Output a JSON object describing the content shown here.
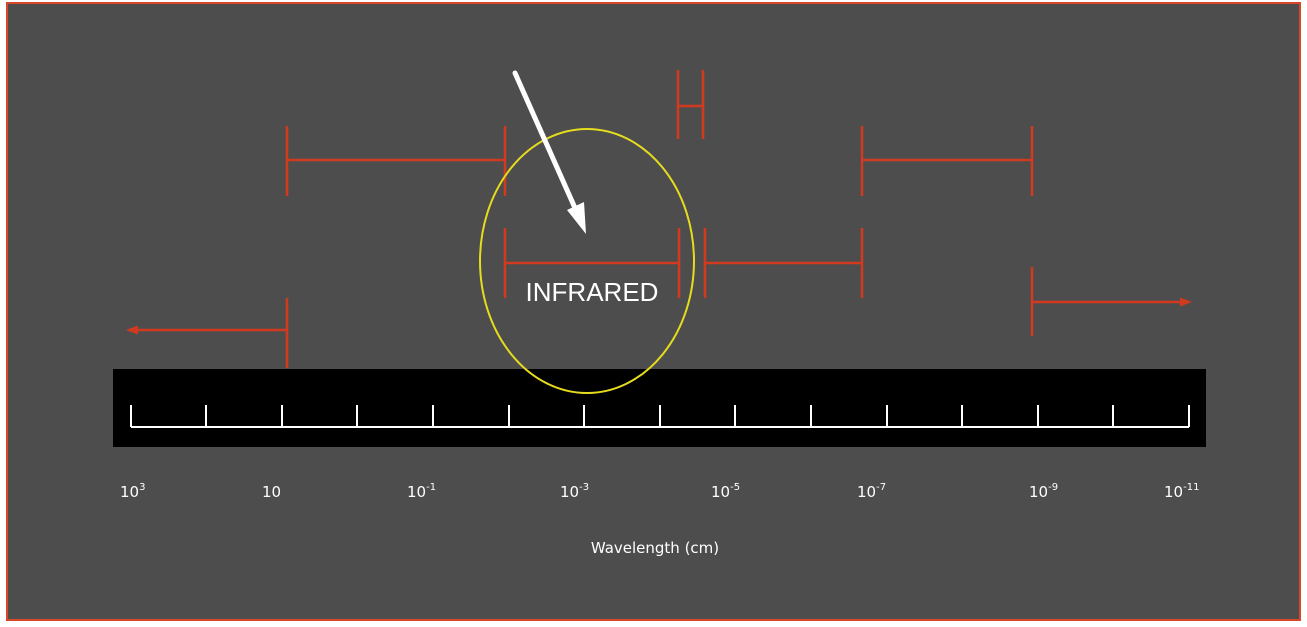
{
  "diagram": {
    "axis_title": "Wavelength (cm)",
    "highlight_label": "INFRARED",
    "tick_labels": [
      {
        "base": "10",
        "exp": "3"
      },
      {
        "base": "10",
        "exp": ""
      },
      {
        "base": "10",
        "exp": "-1"
      },
      {
        "base": "10",
        "exp": "-3"
      },
      {
        "base": "10",
        "exp": "-5"
      },
      {
        "base": "10",
        "exp": "-7"
      },
      {
        "base": "10",
        "exp": "-9"
      },
      {
        "base": "10",
        "exp": "-11"
      }
    ],
    "colors": {
      "background": "#4d4d4d",
      "frame_border": "#d9472b",
      "band_brackets": "#d23a1f",
      "ruler_bar": "#000000",
      "ruler_line": "#ffffff",
      "highlight_ellipse": "#e6dc1e",
      "pointer_arrow": "#ffffff",
      "text": "#ffffff"
    }
  }
}
